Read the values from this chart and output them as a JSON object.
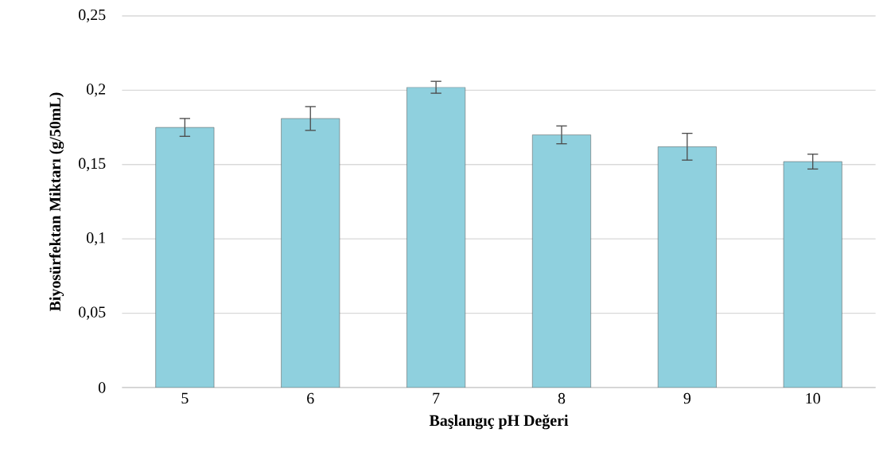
{
  "chart_data": {
    "type": "bar",
    "xlabel": "Başlangıç pH Değeri",
    "ylabel": "Biyosürfektan Miktarı (g/50mL)",
    "categories": [
      "5",
      "6",
      "7",
      "8",
      "9",
      "10"
    ],
    "values": [
      0.175,
      0.181,
      0.202,
      0.17,
      0.162,
      0.152
    ],
    "errors": [
      0.006,
      0.008,
      0.004,
      0.006,
      0.009,
      0.005
    ],
    "color": "#8fd0de",
    "ylim": [
      0,
      0.25
    ],
    "yticks": [
      {
        "value": 0,
        "label": "0"
      },
      {
        "value": 0.05,
        "label": "0,05"
      },
      {
        "value": 0.1,
        "label": "0,1"
      },
      {
        "value": 0.15,
        "label": "0,15"
      },
      {
        "value": 0.2,
        "label": "0,2"
      },
      {
        "value": 0.25,
        "label": "0,25"
      }
    ],
    "grid": "y"
  }
}
